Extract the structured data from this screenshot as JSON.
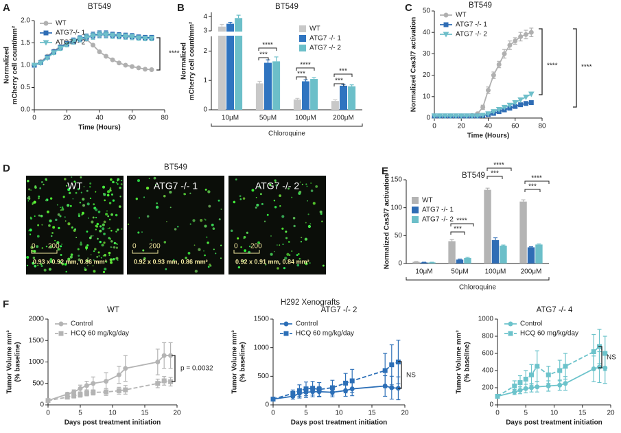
{
  "chart_data": [
    {
      "type": "line",
      "panel": "A",
      "title": "BT549",
      "xlabel": "Time (Hours)",
      "ylabel": [
        "Normalized",
        "mCherry cell count/mm²"
      ],
      "x": [
        0,
        4,
        8,
        12,
        16,
        20,
        24,
        28,
        32,
        36,
        40,
        44,
        48,
        52,
        56,
        60,
        64,
        68,
        72
      ],
      "xlim": [
        0,
        80
      ],
      "xticks": [
        0,
        20,
        40,
        60,
        80
      ],
      "ylim": [
        0,
        2
      ],
      "yticks": [
        {
          "value": 0,
          "label": "0.0"
        },
        {
          "value": 0.5,
          "label": "0.5"
        },
        {
          "value": 1,
          "label": "1.0"
        },
        {
          "value": 1.5,
          "label": "1.5"
        },
        {
          "value": 2,
          "label": "2.0"
        }
      ],
      "legend": "upper left",
      "annotations": [
        "****"
      ],
      "series": [
        {
          "name": "WT",
          "color": "#b0b0b0",
          "marker": "circle",
          "values": [
            1.0,
            1.08,
            1.2,
            1.32,
            1.42,
            1.5,
            1.56,
            1.6,
            1.58,
            1.45,
            1.3,
            1.2,
            1.12,
            1.05,
            1.0,
            0.97,
            0.94,
            0.91,
            0.9
          ]
        },
        {
          "name": "ATG7-/- 1",
          "color": "#2f6db5",
          "marker": "square",
          "values": [
            1.0,
            1.06,
            1.18,
            1.3,
            1.4,
            1.48,
            1.55,
            1.6,
            1.63,
            1.67,
            1.7,
            1.7,
            1.68,
            1.67,
            1.66,
            1.65,
            1.63,
            1.62,
            1.62
          ],
          "errors": [
            0,
            0.02,
            0.03,
            0.04,
            0.05,
            0.05,
            0.06,
            0.06,
            0.07,
            0.07,
            0.07,
            0.07,
            0.06,
            0.06,
            0.06,
            0.06,
            0.05,
            0.05,
            0.05
          ]
        },
        {
          "name": "ATG7-/- 2",
          "color": "#6fbfca",
          "marker": "triangle",
          "values": [
            1.0,
            1.05,
            1.16,
            1.28,
            1.38,
            1.46,
            1.53,
            1.58,
            1.62,
            1.65,
            1.68,
            1.68,
            1.66,
            1.65,
            1.64,
            1.63,
            1.61,
            1.6,
            1.6
          ],
          "errors": [
            0,
            0.02,
            0.03,
            0.04,
            0.05,
            0.05,
            0.06,
            0.06,
            0.07,
            0.07,
            0.07,
            0.07,
            0.06,
            0.06,
            0.06,
            0.06,
            0.05,
            0.05,
            0.05
          ]
        }
      ]
    },
    {
      "type": "bar",
      "panel": "B",
      "title": "BT549",
      "xlabel": "Chloroquine",
      "ylabel": [
        "Normalized",
        "mCherry cell count/mm²"
      ],
      "categories": [
        "10μM",
        "50μM",
        "100μM",
        "200μM"
      ],
      "ylim": [
        0,
        4.3
      ],
      "ybreak": [
        2.5,
        3
      ],
      "yticks": [
        0,
        1,
        2,
        3,
        4
      ],
      "legend": "center right",
      "annotations": [
        "****",
        "***",
        "****",
        "***",
        "***",
        "***"
      ],
      "series": [
        {
          "name": "WT",
          "color": "#c8c8c8",
          "values": [
            3.3,
            0.9,
            0.35,
            0.3
          ],
          "errors": [
            0.15,
            0.07,
            0.04,
            0.04
          ]
        },
        {
          "name": "ATG7 -/- 1",
          "color": "#2f74c0",
          "values": [
            3.5,
            1.6,
            0.97,
            0.82
          ],
          "errors": [
            0.1,
            0.1,
            0.05,
            0.04
          ]
        },
        {
          "name": "ATG7 -/- 2",
          "color": "#6cbfc9",
          "values": [
            3.9,
            1.65,
            1.05,
            0.8
          ],
          "errors": [
            0.2,
            0.15,
            0.05,
            0.05
          ]
        }
      ]
    },
    {
      "type": "line",
      "panel": "C",
      "title": "BT549",
      "xlabel": "Time (Hours)",
      "ylabel": [
        "Normalized Cas3/7 activation"
      ],
      "x": [
        0,
        4,
        8,
        12,
        16,
        20,
        24,
        28,
        32,
        36,
        40,
        44,
        48,
        52,
        56,
        60,
        64,
        68,
        72
      ],
      "xlim": [
        0,
        80
      ],
      "xticks": [
        0,
        20,
        40,
        60,
        80
      ],
      "ylim": [
        0,
        50
      ],
      "yticks": [
        0,
        10,
        20,
        30,
        40,
        50
      ],
      "legend": "upper left",
      "annotations": [
        "****",
        "****"
      ],
      "series": [
        {
          "name": "WT",
          "color": "#b0b0b0",
          "marker": "circle",
          "values": [
            1,
            1,
            1,
            1,
            1,
            1,
            1,
            1.2,
            2,
            5,
            13,
            20,
            25,
            30,
            34,
            36,
            38,
            39,
            40
          ],
          "errors": [
            0,
            0,
            0,
            0,
            0,
            0,
            0,
            0,
            0.5,
            1,
            1.5,
            1.5,
            1.5,
            2,
            2,
            1.5,
            2,
            2,
            2
          ]
        },
        {
          "name": "ATG7 -/- 1",
          "color": "#2f6db5",
          "marker": "square",
          "values": [
            1,
            1,
            1,
            1,
            1,
            1,
            1,
            1,
            1,
            1.2,
            1.6,
            2.2,
            3,
            3.8,
            4.6,
            5.4,
            6.2,
            6.8,
            7.2
          ]
        },
        {
          "name": "ATG7 -/- 2",
          "color": "#6fbfca",
          "marker": "triangle",
          "values": [
            1,
            1,
            1,
            1,
            1,
            1,
            1,
            1,
            1,
            1.3,
            2,
            3,
            4,
            5,
            6,
            7.2,
            8.5,
            9.8,
            11.2
          ]
        }
      ]
    },
    {
      "type": "bar",
      "panel": "E",
      "title": "BT549",
      "xlabel": "Chloroquine",
      "ylabel": [
        "Normalized Cas3/7 activation"
      ],
      "categories": [
        "10μM",
        "50μM",
        "100μM",
        "200μM"
      ],
      "ylim": [
        0,
        150
      ],
      "yticks": [
        0,
        50,
        100,
        150
      ],
      "legend": "upper left",
      "annotations": [
        "****",
        "***",
        "****",
        "***",
        "****",
        "***"
      ],
      "series": [
        {
          "name": "WT",
          "color": "#b4b4b4",
          "values": [
            3,
            40,
            132,
            111
          ],
          "errors": [
            0.5,
            3,
            3,
            3
          ]
        },
        {
          "name": "ATG7 -/- 1",
          "color": "#2f6db5",
          "values": [
            2,
            7,
            42,
            29
          ],
          "errors": [
            0.3,
            1,
            4,
            1
          ]
        },
        {
          "name": "ATG7 -/- 2",
          "color": "#6cbfc9",
          "values": [
            2,
            10,
            32,
            34
          ],
          "errors": [
            0.3,
            1,
            1,
            1
          ]
        }
      ]
    },
    {
      "type": "line",
      "title": "WT",
      "xlabel": "Days post treatment initiation",
      "ylabel": [
        "Tumor Volume mm³",
        "(% baseline)"
      ],
      "x": [
        0,
        3,
        4,
        5,
        6,
        7,
        9,
        11,
        12,
        17,
        18,
        19
      ],
      "xlim": [
        0,
        20
      ],
      "xticks": [
        0,
        5,
        10,
        15,
        20
      ],
      "ylim": [
        0,
        2000
      ],
      "yticks": [
        0,
        500,
        1000,
        1500,
        2000
      ],
      "legend": "upper left",
      "annotations": [
        "p = 0.0032"
      ],
      "series": [
        {
          "name": "Control",
          "color": "#b4b4b4",
          "marker": "circle",
          "values": [
            100,
            250,
            300,
            380,
            450,
            500,
            550,
            700,
            850,
            1000,
            1150,
            1150
          ],
          "errors": [
            0,
            40,
            50,
            80,
            100,
            150,
            200,
            200,
            300,
            300,
            300,
            300
          ]
        },
        {
          "name": "HCQ 60 mg/kg/day",
          "color": "#b4b4b4",
          "marker": "square",
          "dash": true,
          "values": [
            100,
            180,
            210,
            240,
            270,
            290,
            300,
            330,
            350,
            500,
            560,
            540
          ],
          "errors": [
            0,
            40,
            50,
            60,
            60,
            60,
            80,
            80,
            100,
            100,
            100,
            100
          ]
        }
      ]
    },
    {
      "type": "line",
      "title": "ATG7 -/- 2",
      "xlabel": "Days post treatment initiation",
      "ylabel": [
        "Tumor Volume mm³",
        "(% baseline)"
      ],
      "x": [
        0,
        3,
        4,
        5,
        6,
        7,
        9,
        11,
        12,
        17,
        18,
        19
      ],
      "xlim": [
        0,
        20
      ],
      "xticks": [
        0,
        5,
        10,
        15,
        20
      ],
      "ylim": [
        0,
        1500
      ],
      "yticks": [
        0,
        500,
        1000,
        1500
      ],
      "legend": "upper left",
      "annotations": [
        "NS"
      ],
      "series": [
        {
          "name": "Control",
          "color": "#2c6fb7",
          "marker": "circle",
          "values": [
            100,
            150,
            200,
            220,
            230,
            230,
            220,
            250,
            280,
            330,
            300,
            290
          ],
          "errors": [
            0,
            50,
            80,
            90,
            90,
            90,
            80,
            100,
            120,
            180,
            200,
            200
          ]
        },
        {
          "name": "HCQ 60 mg/kg/day",
          "color": "#2c6fb7",
          "marker": "square",
          "dash": true,
          "values": [
            100,
            200,
            250,
            280,
            290,
            270,
            300,
            380,
            420,
            600,
            700,
            750
          ],
          "errors": [
            0,
            60,
            100,
            120,
            120,
            120,
            130,
            170,
            200,
            300,
            350,
            380
          ]
        }
      ]
    },
    {
      "type": "line",
      "title": "ATG7 -/- 4",
      "xlabel": "Days post treatment initiation",
      "ylabel": [
        "Tumor Volume mm³",
        "(% baseline)"
      ],
      "x": [
        0,
        3,
        4,
        5,
        6,
        7,
        9,
        11,
        12,
        17,
        18,
        19
      ],
      "xlim": [
        0,
        20
      ],
      "xticks": [
        0,
        5,
        10,
        15,
        20
      ],
      "ylim": [
        0,
        1000
      ],
      "yticks": [
        0,
        200,
        400,
        600,
        800,
        1000
      ],
      "legend": "upper left",
      "annotations": [
        "NS"
      ],
      "series": [
        {
          "name": "Control",
          "color": "#6cc3cb",
          "marker": "circle",
          "values": [
            100,
            150,
            170,
            190,
            200,
            210,
            220,
            230,
            250,
            420,
            440,
            430
          ],
          "errors": [
            0,
            30,
            40,
            50,
            50,
            60,
            60,
            60,
            80,
            150,
            180,
            180
          ]
        },
        {
          "name": "HCQ 60 mg/kg/day",
          "color": "#6cc3cb",
          "marker": "square",
          "dash": true,
          "values": [
            100,
            220,
            260,
            300,
            350,
            450,
            350,
            400,
            450,
            620,
            680,
            600
          ],
          "errors": [
            0,
            60,
            80,
            100,
            120,
            180,
            100,
            120,
            150,
            200,
            200,
            200
          ]
        }
      ]
    }
  ],
  "panel_d": {
    "panel": "D",
    "title": "BT549",
    "items": [
      {
        "label": "WT",
        "scale_start": "0",
        "scale_end": "200",
        "info": "0.93 x 0.92 mm, 0.86 mm²"
      },
      {
        "label": "ATG7 -/- 1",
        "scale_start": "0",
        "scale_end": "200",
        "info": "0.92 x 0.93 mm, 0.86 mm²"
      },
      {
        "label": "ATG7 -/- 2",
        "scale_start": "0",
        "scale_end": "200",
        "info": "0.92 x 0.91 mm, 0.84 mm²"
      }
    ]
  },
  "panel_f": {
    "panel": "F",
    "title": "H292 Xenografts"
  }
}
